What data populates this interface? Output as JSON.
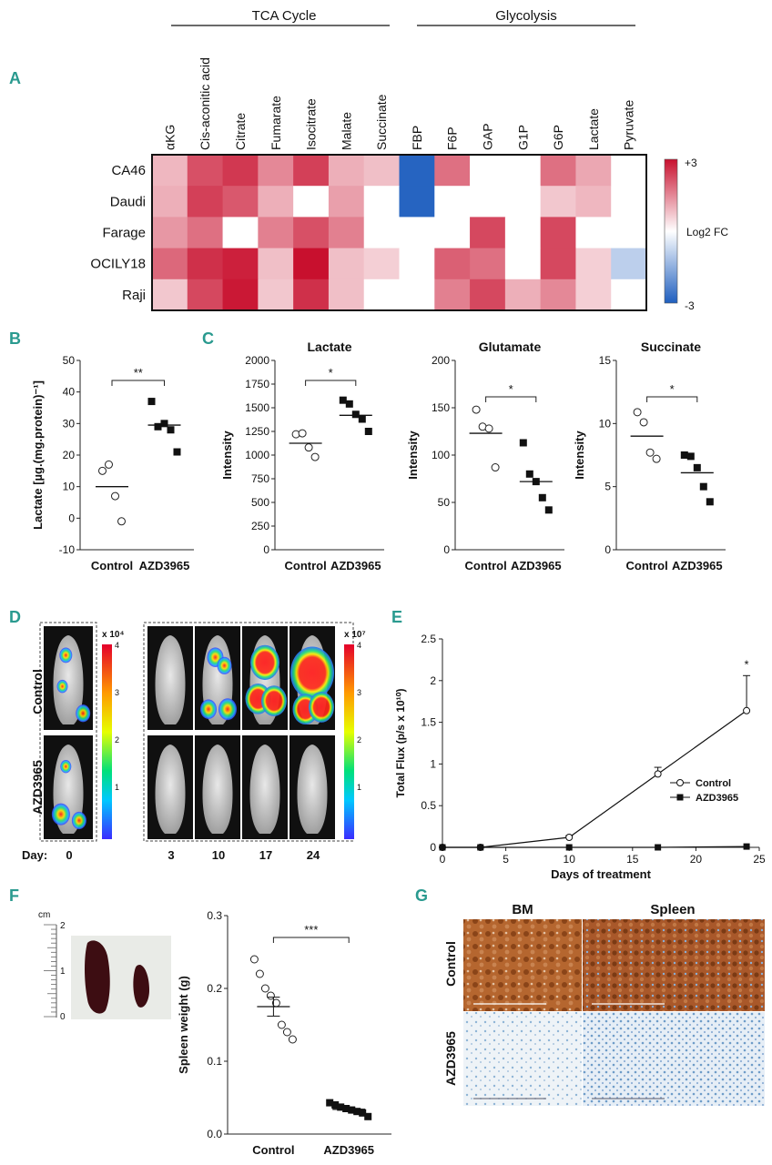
{
  "panels": {
    "a": "A",
    "b": "B",
    "c": "C",
    "d": "D",
    "e": "E",
    "f": "F",
    "g": "G"
  },
  "heatmap": {
    "groups": [
      "TCA Cycle",
      "Glycolysis"
    ],
    "columns": [
      "αKG",
      "Cis-aconitic acid",
      "Citrate",
      "Fumarate",
      "Isocitrate",
      "Malate",
      "Succinate",
      "FBP",
      "F6P",
      "GAP",
      "G1P",
      "G6P",
      "Lactate",
      "Pyruvate"
    ],
    "rows": [
      "CA46",
      "Daudi",
      "Farage",
      "OCILY18",
      "Raji"
    ],
    "values": [
      [
        0.9,
        2.2,
        2.5,
        1.5,
        2.4,
        1.0,
        0.8,
        -2.9,
        1.8,
        0,
        0,
        1.8,
        1.1,
        0
      ],
      [
        1.0,
        2.4,
        2.1,
        1.0,
        0,
        1.2,
        0,
        -2.9,
        0,
        0,
        0,
        0.7,
        0.9,
        0
      ],
      [
        1.3,
        1.8,
        0,
        1.6,
        2.2,
        1.6,
        0,
        0,
        0,
        2.3,
        0,
        2.3,
        0,
        0
      ],
      [
        1.9,
        2.6,
        2.8,
        0.8,
        3.0,
        0.8,
        0.6,
        0,
        2.0,
        1.8,
        0,
        2.3,
        0.6,
        -0.9
      ],
      [
        0.7,
        2.3,
        2.9,
        0.7,
        2.6,
        0.8,
        0,
        0,
        1.6,
        2.3,
        1.0,
        1.5,
        0.6,
        0
      ]
    ],
    "scale_max": "+3",
    "scale_min": "-3",
    "scale_label": "Log2 FC",
    "colors": {
      "pos": "#c8102e",
      "neg": "#1f5fbf",
      "mid": "#ffffff"
    }
  },
  "chart_data": [
    {
      "id": "B",
      "type": "scatter",
      "ylabel": "Lactate [µg.(mg.protein)⁻¹]",
      "categories": [
        "Control",
        "AZD3965"
      ],
      "ylim": [
        -10,
        50
      ],
      "yticks": [
        -10,
        0,
        10,
        20,
        30,
        40,
        50
      ],
      "series": [
        {
          "name": "Control",
          "values": [
            15,
            17,
            7,
            -1
          ],
          "mean": 10
        },
        {
          "name": "AZD3965",
          "values": [
            37,
            29,
            30,
            28,
            21
          ],
          "mean": 29.5
        }
      ],
      "significance": "**"
    },
    {
      "id": "C1",
      "type": "scatter",
      "title": "Lactate",
      "ylabel": "Intensity",
      "categories": [
        "Control",
        "AZD3965"
      ],
      "ylim": [
        0,
        2000
      ],
      "yticks": [
        0,
        250,
        500,
        750,
        1000,
        1250,
        1500,
        1750,
        2000
      ],
      "series": [
        {
          "name": "Control",
          "values": [
            1220,
            1230,
            1080,
            980
          ],
          "mean": 1125
        },
        {
          "name": "AZD3965",
          "values": [
            1580,
            1540,
            1430,
            1380,
            1250
          ],
          "mean": 1420
        }
      ],
      "significance": "*"
    },
    {
      "id": "C2",
      "type": "scatter",
      "title": "Glutamate",
      "ylabel": "Intensity",
      "categories": [
        "Control",
        "AZD3965"
      ],
      "ylim": [
        0,
        200
      ],
      "yticks": [
        0,
        50,
        100,
        150,
        200
      ],
      "series": [
        {
          "name": "Control",
          "values": [
            148,
            130,
            128,
            87
          ],
          "mean": 123
        },
        {
          "name": "AZD3965",
          "values": [
            113,
            80,
            72,
            55,
            42
          ],
          "mean": 72
        }
      ],
      "significance": "*"
    },
    {
      "id": "C3",
      "type": "scatter",
      "title": "Succinate",
      "ylabel": "Intensity",
      "categories": [
        "Control",
        "AZD3965"
      ],
      "ylim": [
        0,
        15
      ],
      "yticks": [
        0,
        5,
        10,
        15
      ],
      "series": [
        {
          "name": "Control",
          "values": [
            10.9,
            10.1,
            7.7,
            7.2
          ],
          "mean": 9.0
        },
        {
          "name": "AZD3965",
          "values": [
            7.5,
            7.4,
            6.5,
            5.0,
            3.8
          ],
          "mean": 6.1
        }
      ],
      "significance": "*"
    },
    {
      "id": "E",
      "type": "line",
      "xlabel": "Days of treatment",
      "ylabel": "Total Flux (p/s x 10¹⁰)",
      "xlim": [
        0,
        25
      ],
      "ylim": [
        0,
        2.5
      ],
      "xticks": [
        0,
        5,
        10,
        15,
        20,
        25
      ],
      "yticks": [
        0,
        0.5,
        1,
        1.5,
        2,
        2.5
      ],
      "x": [
        0,
        3,
        10,
        17,
        24
      ],
      "series": [
        {
          "name": "Control",
          "values": [
            0,
            0,
            0.12,
            0.88,
            1.64
          ],
          "errors": [
            0,
            0,
            0.02,
            0.08,
            0.42
          ]
        },
        {
          "name": "AZD3965",
          "values": [
            0,
            0,
            0,
            0,
            0.01
          ],
          "errors": [
            0,
            0,
            0,
            0,
            0
          ]
        }
      ],
      "legend": [
        "Control",
        "AZD3965"
      ],
      "annotation": "*"
    },
    {
      "id": "F",
      "type": "scatter",
      "ylabel": "Spleen weight (g)",
      "categories": [
        "Control",
        "AZD3965"
      ],
      "ylim": [
        0,
        0.3
      ],
      "yticks": [
        0.0,
        0.1,
        0.2,
        0.3
      ],
      "series": [
        {
          "name": "Control",
          "values": [
            0.24,
            0.22,
            0.2,
            0.19,
            0.18,
            0.15,
            0.14,
            0.13
          ],
          "mean": 0.175,
          "sem": 0.013
        },
        {
          "name": "AZD3965",
          "values": [
            0.043,
            0.04,
            0.037,
            0.035,
            0.033,
            0.031,
            0.029,
            0.024
          ],
          "mean": 0.034,
          "sem": 0.003
        }
      ],
      "significance": "***"
    }
  ],
  "imaging": {
    "rows": [
      "Control",
      "AZD3965"
    ],
    "scale1": "x 10⁴",
    "scale2": "x 10⁷",
    "scale_ticks": [
      "4",
      "3",
      "2",
      "1"
    ],
    "day_label": "Day:",
    "days": [
      "0",
      "3",
      "10",
      "17",
      "24"
    ]
  },
  "spleen_photo": {
    "unit": "cm",
    "ticks": [
      "2",
      "1",
      "0"
    ]
  },
  "ihc": {
    "cols": [
      "BM",
      "Spleen"
    ],
    "rows": [
      "Control",
      "AZD3965"
    ]
  }
}
